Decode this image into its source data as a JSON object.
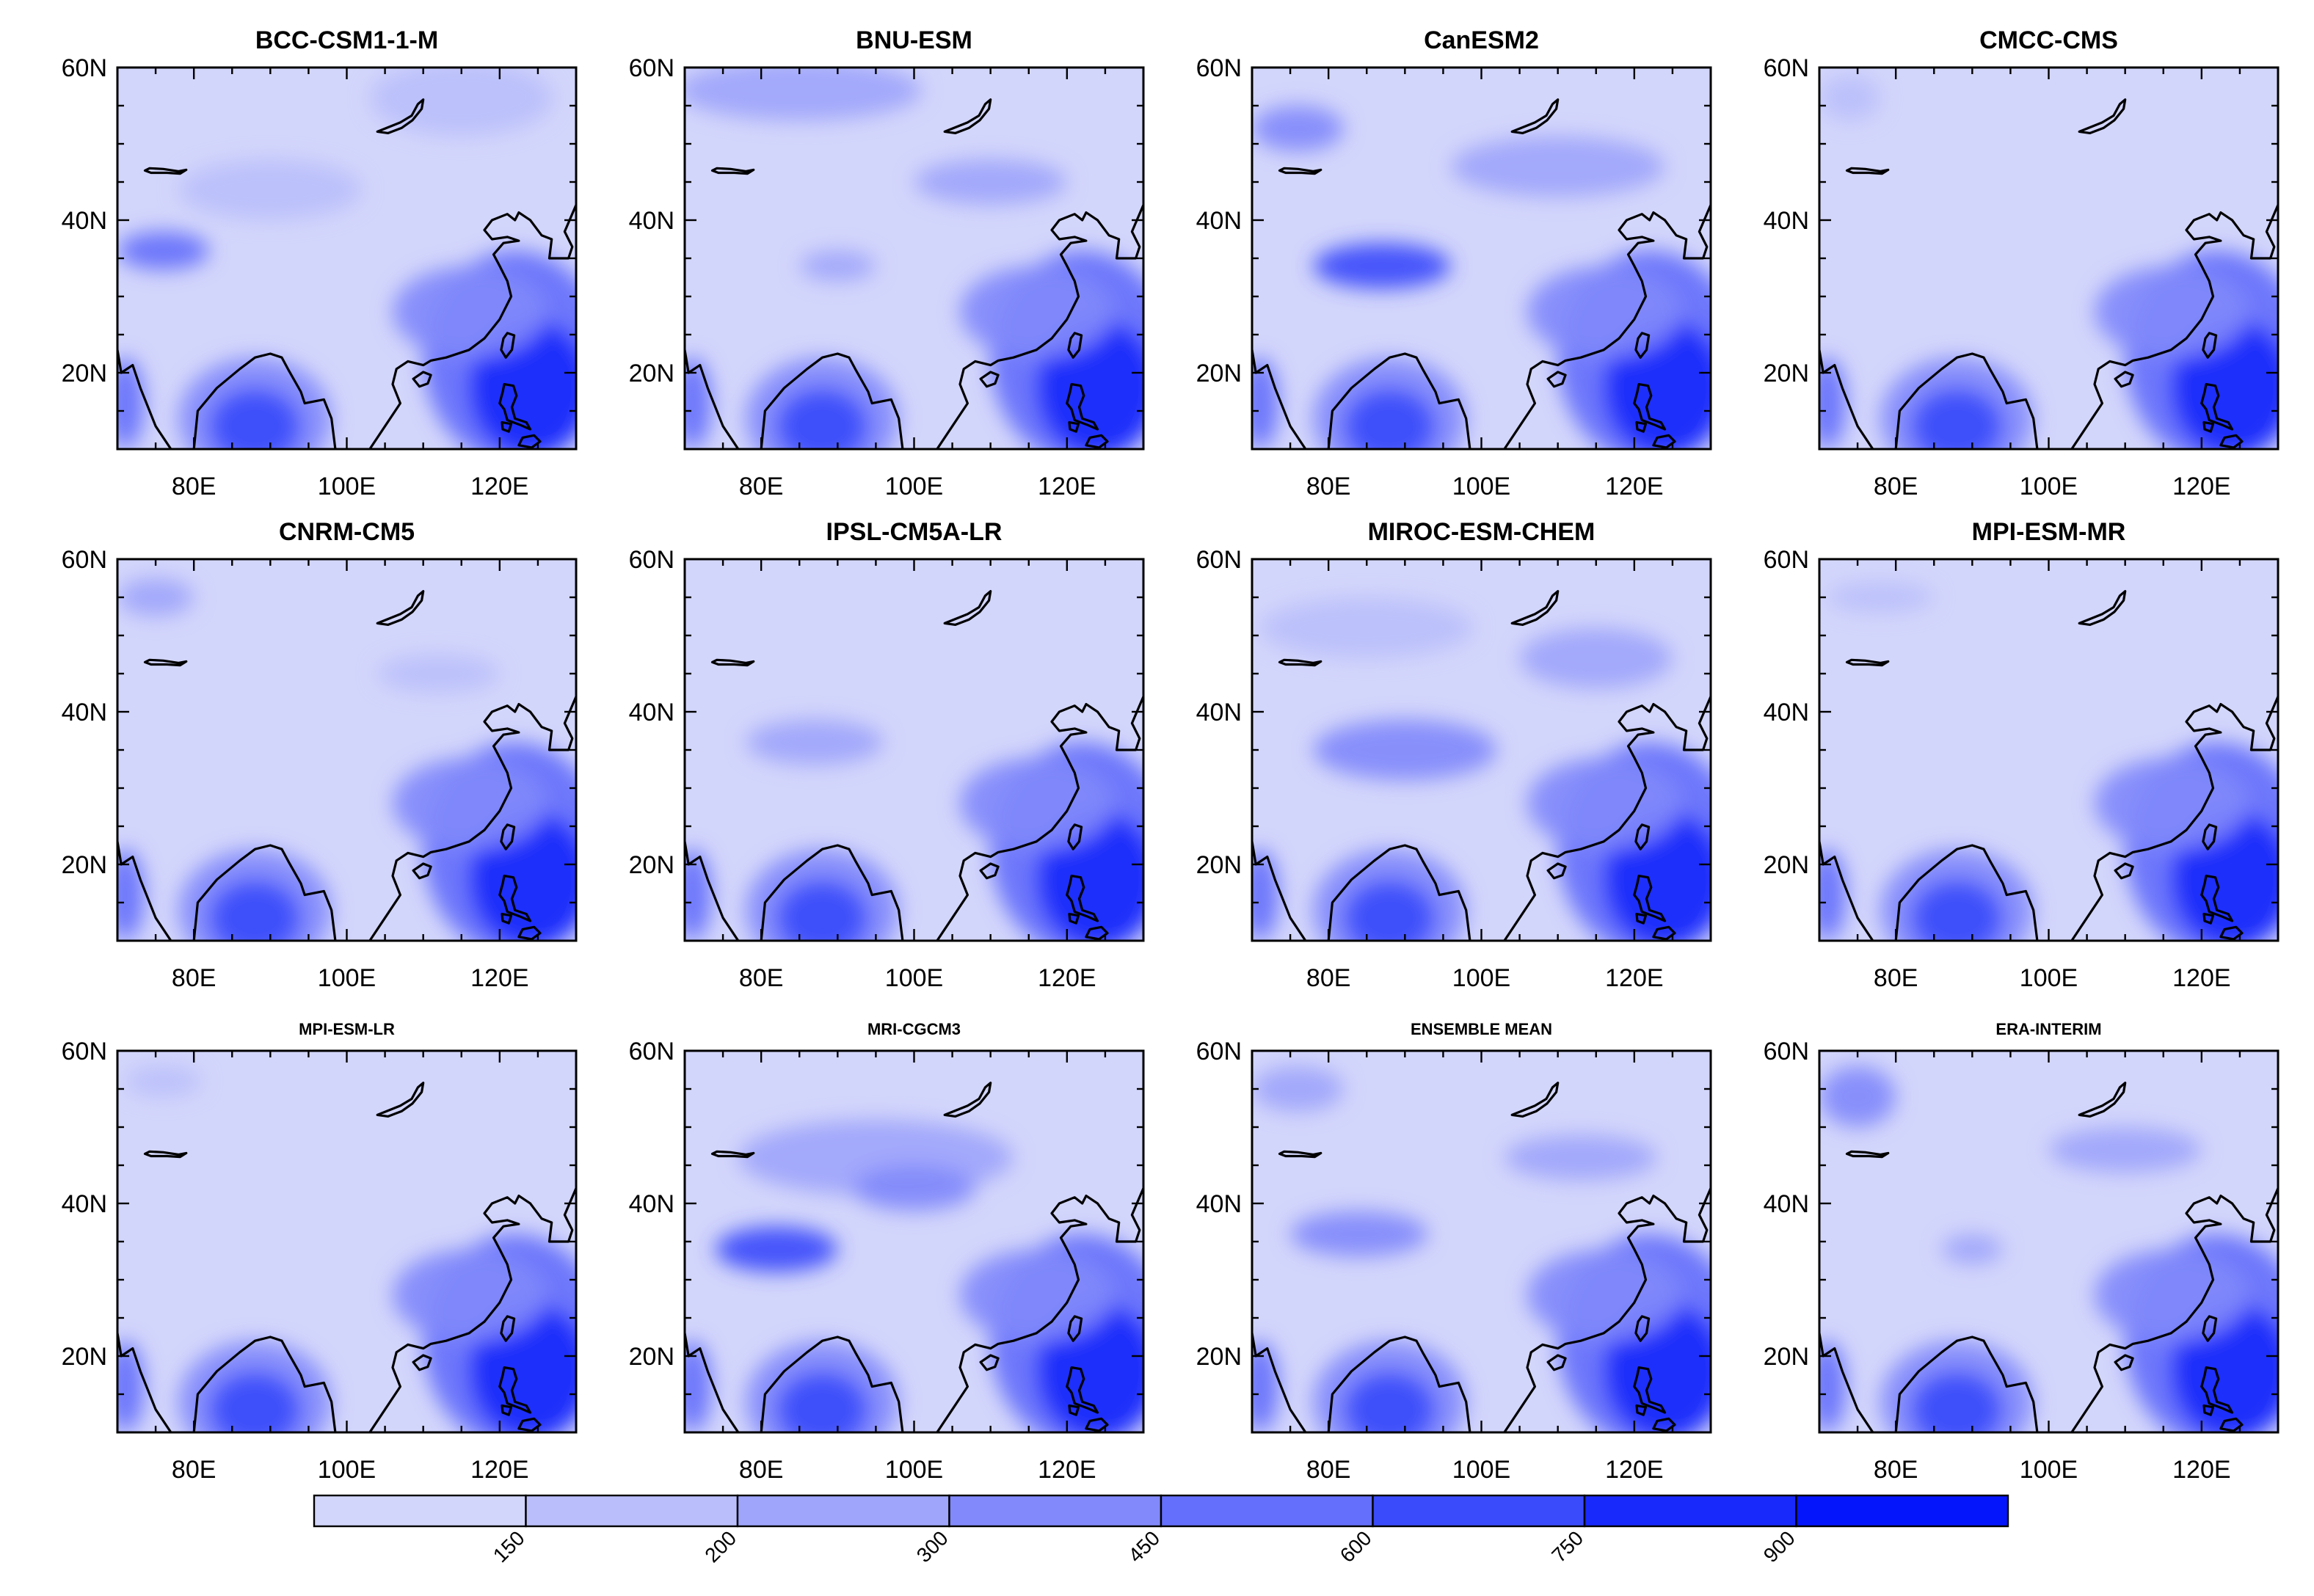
{
  "chart_data": {
    "type": "heatmap",
    "description_units": "filled contour maps, 12 panels",
    "x_axis": {
      "ticks": [
        "80E",
        "100E",
        "120E"
      ],
      "range": [
        70,
        130
      ]
    },
    "y_axis": {
      "ticks": [
        "20N",
        "40N",
        "60N"
      ],
      "range": [
        10,
        60
      ]
    },
    "colorbar": {
      "levels": [
        "150",
        "200",
        "300",
        "450",
        "600",
        "750",
        "900"
      ],
      "colors": [
        "#d3d6fb",
        "#babffb",
        "#9ea5fb",
        "#8189fb",
        "#646ffb",
        "#3a4bfb",
        "#1829fb",
        "#0515fb"
      ],
      "orientation": "horizontal"
    },
    "panels": [
      {
        "title": "BCC-CSM1-1-M",
        "blobs": [
          {
            "lon": 115,
            "lat": 56,
            "rx": 12,
            "ry": 5,
            "level": 1
          },
          {
            "lon": 76,
            "lat": 36,
            "rx": 6,
            "ry": 2.5,
            "level": 4
          },
          {
            "lon": 90,
            "lat": 44,
            "rx": 12,
            "ry": 4,
            "level": 1
          }
        ]
      },
      {
        "title": "BNU-ESM",
        "blobs": [
          {
            "lon": 85,
            "lat": 57,
            "rx": 16,
            "ry": 4,
            "level": 2
          },
          {
            "lon": 110,
            "lat": 45,
            "rx": 10,
            "ry": 3,
            "level": 2
          },
          {
            "lon": 90,
            "lat": 34,
            "rx": 5,
            "ry": 2,
            "level": 2
          }
        ]
      },
      {
        "title": "CanESM2",
        "blobs": [
          {
            "lon": 76,
            "lat": 52,
            "rx": 6,
            "ry": 3,
            "level": 3
          },
          {
            "lon": 110,
            "lat": 47,
            "rx": 14,
            "ry": 4,
            "level": 2
          },
          {
            "lon": 87,
            "lat": 34,
            "rx": 9,
            "ry": 3,
            "level": 5
          }
        ]
      },
      {
        "title": "CMCC-CMS",
        "blobs": [
          {
            "lon": 74,
            "lat": 56,
            "rx": 4,
            "ry": 3,
            "level": 1
          }
        ]
      },
      {
        "title": "CNRM-CM5",
        "blobs": [
          {
            "lon": 75,
            "lat": 55,
            "rx": 5,
            "ry": 2.5,
            "level": 2
          },
          {
            "lon": 112,
            "lat": 45,
            "rx": 8,
            "ry": 2.5,
            "level": 1
          }
        ]
      },
      {
        "title": "IPSL-CM5A-LR",
        "blobs": [
          {
            "lon": 87,
            "lat": 36,
            "rx": 9,
            "ry": 3,
            "level": 2
          }
        ]
      },
      {
        "title": "MIROC-ESM-CHEM",
        "blobs": [
          {
            "lon": 85,
            "lat": 51,
            "rx": 14,
            "ry": 4,
            "level": 1
          },
          {
            "lon": 115,
            "lat": 47,
            "rx": 10,
            "ry": 4,
            "level": 2
          },
          {
            "lon": 90,
            "lat": 35,
            "rx": 12,
            "ry": 4,
            "level": 3
          }
        ]
      },
      {
        "title": "MPI-ESM-MR",
        "blobs": [
          {
            "lon": 78,
            "lat": 55,
            "rx": 7,
            "ry": 2,
            "level": 1
          }
        ]
      },
      {
        "title": "MPI-ESM-LR",
        "blobs": [
          {
            "lon": 76,
            "lat": 56,
            "rx": 5,
            "ry": 2,
            "level": 1
          }
        ]
      },
      {
        "title": "MRI-CGCM3",
        "blobs": [
          {
            "lon": 95,
            "lat": 46,
            "rx": 18,
            "ry": 5,
            "level": 2
          },
          {
            "lon": 82,
            "lat": 34,
            "rx": 8,
            "ry": 3,
            "level": 5
          },
          {
            "lon": 100,
            "lat": 42,
            "rx": 8,
            "ry": 3,
            "level": 3
          }
        ]
      },
      {
        "title": "ENSEMBLE MEAN",
        "blobs": [
          {
            "lon": 76,
            "lat": 55,
            "rx": 6,
            "ry": 3,
            "level": 2
          },
          {
            "lon": 113,
            "lat": 46,
            "rx": 10,
            "ry": 3,
            "level": 2
          },
          {
            "lon": 84,
            "lat": 36,
            "rx": 9,
            "ry": 3,
            "level": 3
          }
        ]
      },
      {
        "title": "ERA-INTERIM",
        "blobs": [
          {
            "lon": 75,
            "lat": 54,
            "rx": 5,
            "ry": 4,
            "level": 3
          },
          {
            "lon": 110,
            "lat": 47,
            "rx": 10,
            "ry": 3,
            "level": 2
          },
          {
            "lon": 90,
            "lat": 34,
            "rx": 4,
            "ry": 2,
            "level": 2
          }
        ]
      }
    ]
  }
}
